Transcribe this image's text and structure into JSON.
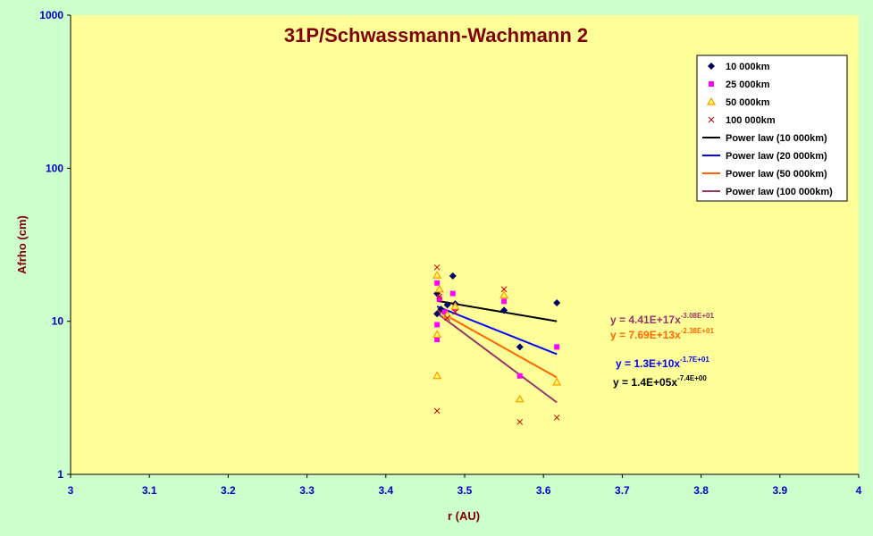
{
  "chart_data": {
    "type": "scatter",
    "title": "31P/Schwassmann-Wachmann 2",
    "xlabel": "r (AU)",
    "ylabel": "Afrho (cm)",
    "xlim": [
      3,
      4
    ],
    "ylim": [
      1,
      1000
    ],
    "yscale": "log",
    "x_ticks": [
      "3",
      "3.1",
      "3.2",
      "3.3",
      "3.4",
      "3.5",
      "3.6",
      "3.7",
      "3.8",
      "3.9",
      "4"
    ],
    "y_ticks": [
      "1",
      "10",
      "100",
      "1000"
    ],
    "grid": false,
    "legend_position": "top-right",
    "series": [
      {
        "name": "10 000km",
        "marker": "diamond",
        "color": "#000066",
        "points": [
          [
            3.465,
            15.2
          ],
          [
            3.465,
            11.2
          ],
          [
            3.47,
            12.0
          ],
          [
            3.478,
            12.8
          ],
          [
            3.485,
            19.8
          ],
          [
            3.488,
            13.0
          ],
          [
            3.55,
            11.8
          ],
          [
            3.57,
            6.8
          ],
          [
            3.617,
            13.2
          ]
        ]
      },
      {
        "name": "25 000km",
        "marker": "square",
        "color": "#ff00ff",
        "points": [
          [
            3.465,
            17.8
          ],
          [
            3.465,
            9.5
          ],
          [
            3.465,
            7.6
          ],
          [
            3.468,
            14.0
          ],
          [
            3.475,
            11.5
          ],
          [
            3.485,
            15.2
          ],
          [
            3.488,
            12.2
          ],
          [
            3.55,
            13.5
          ],
          [
            3.57,
            4.4
          ],
          [
            3.617,
            6.8
          ]
        ]
      },
      {
        "name": "50 000km",
        "marker": "triangle",
        "color": "#ff9900",
        "points": [
          [
            3.465,
            20.0
          ],
          [
            3.465,
            8.2
          ],
          [
            3.465,
            4.4
          ],
          [
            3.468,
            16.2
          ],
          [
            3.478,
            11.0
          ],
          [
            3.488,
            12.5
          ],
          [
            3.55,
            14.8
          ],
          [
            3.57,
            3.1
          ],
          [
            3.617,
            4.0
          ]
        ]
      },
      {
        "name": "100 000km",
        "marker": "x",
        "color": "#cc0000",
        "points": [
          [
            3.465,
            22.5
          ],
          [
            3.465,
            2.6
          ],
          [
            3.468,
            14.5
          ],
          [
            3.478,
            10.5
          ],
          [
            3.488,
            11.5
          ],
          [
            3.55,
            16.2
          ],
          [
            3.57,
            2.2
          ],
          [
            3.617,
            2.35
          ]
        ]
      },
      {
        "name": "Power law (10 000km)",
        "type": "line",
        "color": "#000000",
        "line": [
          [
            3.465,
            13.6
          ],
          [
            3.617,
            10.0
          ]
        ]
      },
      {
        "name": "Power law (20 000km)",
        "type": "line",
        "color": "#0000ff",
        "line": [
          [
            3.465,
            12.5
          ],
          [
            3.617,
            6.1
          ]
        ]
      },
      {
        "name": "Power law (50 000km)",
        "type": "line",
        "color": "#ff6600",
        "line": [
          [
            3.465,
            11.8
          ],
          [
            3.617,
            4.3
          ]
        ]
      },
      {
        "name": "Power law (100 000km)",
        "type": "line",
        "color": "#993366",
        "line": [
          [
            3.465,
            11.3
          ],
          [
            3.617,
            2.95
          ]
        ]
      }
    ],
    "annotations": [
      {
        "base": "y = 4.41E+17x",
        "exp": "-3.08E+01",
        "color": "#993366"
      },
      {
        "base": "y = 7.69E+13x",
        "exp": "-2.38E+01",
        "color": "#ff6600"
      },
      {
        "base": "y = 1.3E+10x",
        "exp": "-1.7E+01",
        "color": "#0000ff"
      },
      {
        "base": "y = 1.4E+05x",
        "exp": "-7.4E+00",
        "color": "#000000"
      }
    ]
  }
}
